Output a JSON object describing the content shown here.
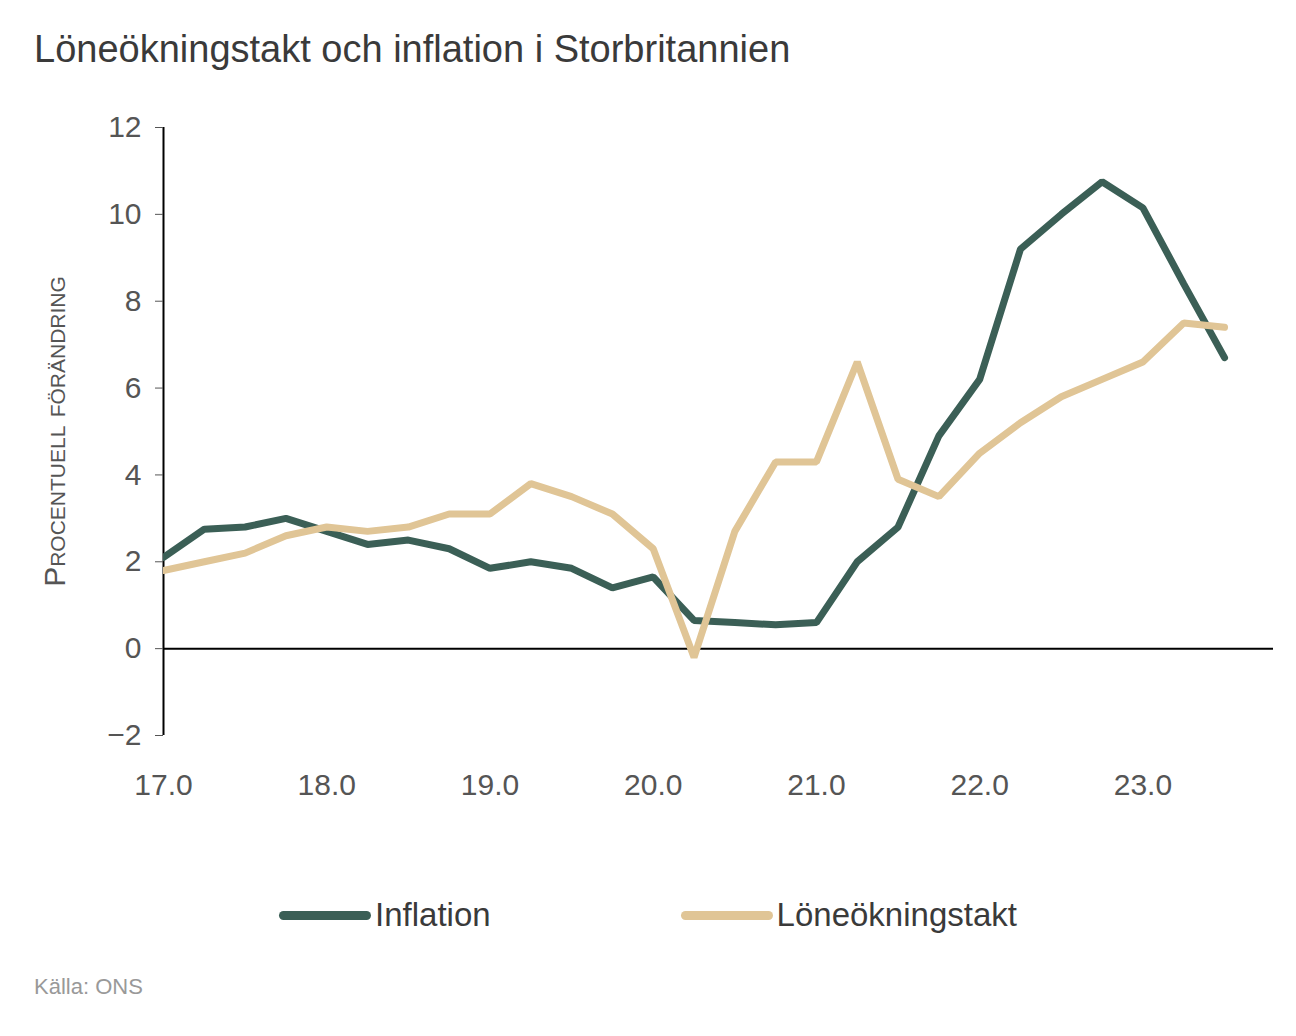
{
  "chart_data": {
    "type": "line",
    "title": "Löneökningstakt och inflation i Storbritannien",
    "y_label": "Procentuell förändring",
    "source": "Källa: ONS",
    "x": [
      17,
      17.25,
      17.5,
      17.75,
      18,
      18.25,
      18.5,
      18.75,
      19,
      19.25,
      19.5,
      19.75,
      20,
      20.25,
      20.5,
      20.75,
      21,
      21.25,
      21.5,
      21.75,
      22,
      22.25,
      22.5,
      22.75,
      23,
      23.25,
      23.5
    ],
    "series": [
      {
        "name": "Inflation",
        "color": "#3b5f56",
        "values": [
          2.1,
          2.75,
          2.8,
          3.0,
          2.7,
          2.4,
          2.5,
          2.3,
          1.85,
          2.0,
          1.85,
          1.4,
          1.65,
          0.65,
          0.6,
          0.55,
          0.6,
          2.0,
          2.8,
          4.9,
          6.2,
          9.2,
          10.0,
          10.75,
          10.15,
          8.4,
          6.7
        ]
      },
      {
        "name": "Löneökningstakt",
        "color": "#e0c596",
        "values": [
          1.8,
          2.0,
          2.2,
          2.6,
          2.8,
          2.7,
          2.8,
          3.1,
          3.1,
          3.8,
          3.5,
          3.1,
          2.3,
          -0.2,
          2.7,
          4.3,
          4.3,
          6.6,
          3.9,
          3.5,
          4.5,
          5.2,
          5.8,
          6.2,
          6.6,
          7.5,
          7.4
        ]
      }
    ],
    "xlim": [
      17,
      23.8
    ],
    "xticks": [
      17,
      18,
      19,
      20,
      21,
      22,
      23
    ],
    "ylim": [
      -2,
      12
    ],
    "yticks": [
      -2,
      0,
      2,
      4,
      6,
      8,
      10,
      12
    ],
    "grid": false,
    "legend": "bottom"
  }
}
